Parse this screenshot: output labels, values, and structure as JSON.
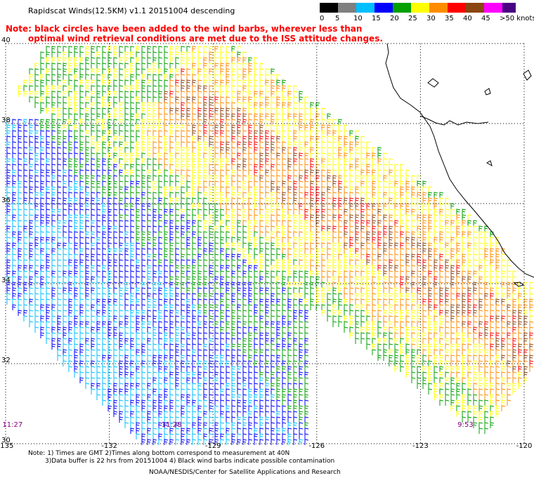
{
  "title": "Rapidscat Winds(12.5KM) v1.1 20151004 descending",
  "note_line1": "Note: black circles have been added to the wind barbs, wherever less than",
  "note_line2": "optimal wind retrieval conditions are met due to the ISS attitude changes.",
  "legend": {
    "labels": [
      "0",
      "5",
      "10",
      "15",
      "20",
      "25",
      "30",
      "35",
      "40",
      "45",
      ">50 knots"
    ],
    "colors": [
      "#000000",
      "#808080",
      "#00bfff",
      "#0000ff",
      "#00a000",
      "#ffff00",
      "#ff8c00",
      "#ff0000",
      "#8b4513",
      "#ff00ff",
      "#4b0082"
    ]
  },
  "map": {
    "x_ticks": [
      "-135",
      "-132",
      "-129",
      "-126",
      "-123",
      "-120"
    ],
    "y_ticks": [
      "40",
      "38",
      "36",
      "34",
      "32",
      "30"
    ],
    "x_values": [
      -135,
      -132,
      -129,
      -126,
      -123,
      -120
    ],
    "y_values": [
      40,
      38,
      36,
      34,
      32,
      30
    ],
    "times": [
      {
        "label": "11:27",
        "lon": -134.8
      },
      {
        "label": "11:28",
        "lon": -130.2
      },
      {
        "label": "9:53",
        "lon": -121.7
      }
    ]
  },
  "footer": {
    "line1": "Note: 1) Times are GMT 2)Times along bottom correspond to measurement at 40N",
    "line2": "3)Data buffer is 22 hrs from 20151004 4) Black wind barbs indicate possible contamination",
    "credit": "NOAA/NESDIS/Center for Satellite Applications and Research"
  }
}
